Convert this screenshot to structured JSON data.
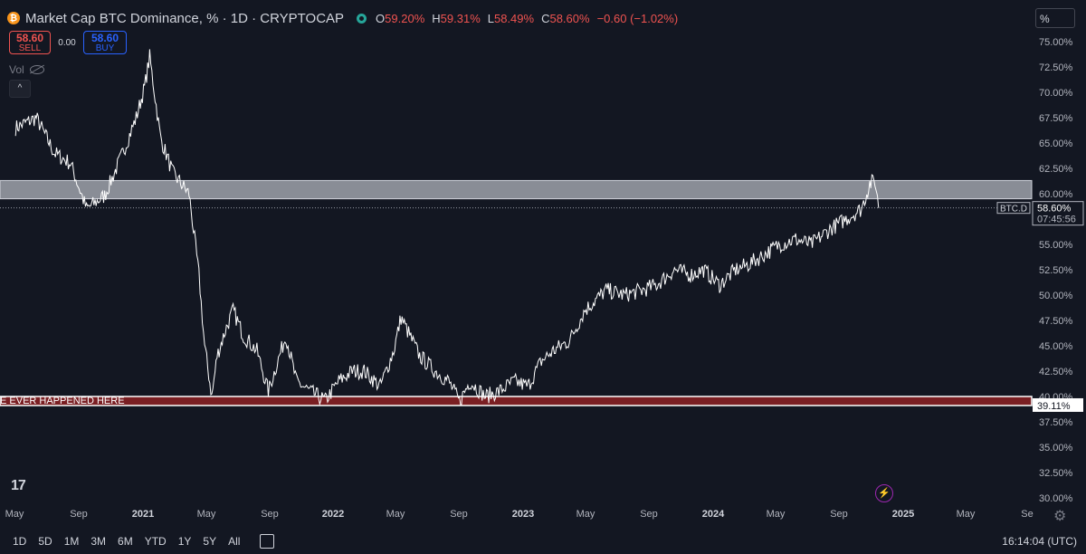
{
  "header": {
    "coin_glyph": "₿",
    "title": "Market Cap BTC Dominance, % · 1D · CRYPTOCAP",
    "ohlc": [
      {
        "key": "O",
        "value": "59.20%"
      },
      {
        "key": "H",
        "value": "59.31%"
      },
      {
        "key": "L",
        "value": "58.49%"
      },
      {
        "key": "C",
        "value": "58.60%"
      }
    ],
    "change": "−0.60 (−1.02%)",
    "change_color": "#ef5350"
  },
  "trade": {
    "sell_price": "58.60",
    "sell_label": "SELL",
    "spread": "0.00",
    "buy_price": "58.60",
    "buy_label": "BUY"
  },
  "volume_label": "Vol",
  "scale_mode": "%",
  "price_tag": {
    "symbol": "BTC.D",
    "price": "58.60%",
    "countdown": "07:45:56"
  },
  "support_tag": "39.11%",
  "annotation": "E EVER HAPPENED HERE",
  "logo": "17",
  "time_ranges": [
    "1D",
    "5D",
    "1M",
    "3M",
    "6M",
    "YTD",
    "1Y",
    "5Y",
    "All"
  ],
  "clock": "16:14:04 (UTC)",
  "colors": {
    "background": "#131722",
    "series": "#ffffff",
    "resistance_zone": "#b2b5be",
    "support_zone": "#7a1f23",
    "sell": "#ef5350",
    "buy": "#2962ff"
  },
  "icons": {
    "search": "none",
    "gear": "gear-icon",
    "bolt": "lightning-icon",
    "goto": "calendar-goto-icon",
    "eye": "eye-off-icon"
  },
  "chart_data": {
    "type": "line",
    "title": "Market Cap BTC Dominance, %",
    "series": [
      {
        "name": "BTC.D",
        "x": [
          "2020-05-01",
          "2020-06-10",
          "2020-07-15",
          "2020-08-15",
          "2020-09-15",
          "2020-10-20",
          "2020-11-20",
          "2020-12-20",
          "2021-01-05",
          "2021-01-15",
          "2021-02-05",
          "2021-03-01",
          "2021-04-01",
          "2021-04-20",
          "2021-05-01",
          "2021-05-15",
          "2021-05-25",
          "2021-06-10",
          "2021-06-25",
          "2021-07-15",
          "2021-08-10",
          "2021-09-01",
          "2021-09-10",
          "2021-10-05",
          "2021-10-25",
          "2021-11-20",
          "2021-12-20",
          "2022-01-15",
          "2022-02-10",
          "2022-03-05",
          "2022-04-05",
          "2022-05-01",
          "2022-05-15",
          "2022-06-20",
          "2022-07-20",
          "2022-08-15",
          "2022-09-05",
          "2022-09-25",
          "2022-10-25",
          "2022-11-20",
          "2022-12-20",
          "2023-01-15",
          "2023-02-10",
          "2023-03-05",
          "2023-04-05",
          "2023-05-05",
          "2023-06-15",
          "2023-07-20",
          "2023-08-25",
          "2023-09-20",
          "2023-10-25",
          "2023-11-25",
          "2023-12-20",
          "2024-01-20",
          "2024-02-20",
          "2024-03-15",
          "2024-04-15",
          "2024-05-15",
          "2024-06-15",
          "2024-07-15",
          "2024-08-20",
          "2024-09-20",
          "2024-10-20",
          "2024-11-05",
          "2024-11-15",
          "2024-11-22"
        ],
        "y": [
          66.5,
          67.5,
          64.0,
          63.0,
          58.5,
          59.8,
          63.5,
          67.5,
          70.5,
          73.5,
          65.5,
          62.0,
          60.0,
          52.0,
          45.0,
          40.0,
          44.0,
          46.5,
          48.5,
          46.0,
          44.5,
          40.5,
          42.0,
          46.0,
          41.5,
          40.5,
          39.6,
          41.5,
          42.5,
          42.5,
          41.0,
          44.5,
          47.8,
          44.0,
          42.5,
          41.5,
          39.5,
          41.5,
          40.0,
          40.5,
          41.5,
          41.0,
          43.5,
          44.5,
          45.5,
          48.5,
          50.5,
          50.0,
          50.5,
          51.0,
          52.5,
          52.0,
          52.5,
          51.0,
          52.5,
          53.0,
          54.0,
          55.0,
          55.5,
          55.0,
          56.5,
          57.5,
          58.5,
          61.0,
          61.3,
          58.6
        ]
      }
    ],
    "xlabel": "",
    "ylabel": "",
    "x_ticks": [
      "May",
      "Sep",
      "2021",
      "May",
      "Sep",
      "2022",
      "May",
      "Sep",
      "2023",
      "May",
      "Sep",
      "2024",
      "May",
      "Sep",
      "2025",
      "May",
      "Se"
    ],
    "y_ticks": [
      "75.00%",
      "72.50%",
      "70.00%",
      "67.50%",
      "65.00%",
      "62.50%",
      "60.00%",
      "57.50%",
      "55.00%",
      "52.50%",
      "50.00%",
      "47.50%",
      "45.00%",
      "42.50%",
      "40.00%",
      "37.50%",
      "35.00%",
      "32.50%",
      "30.00%"
    ],
    "ylim": [
      30,
      75
    ],
    "x_range": [
      "2020-04-01",
      "2025-10-01"
    ],
    "zones": [
      {
        "label": "resistance",
        "from": 59.5,
        "to": 61.3
      },
      {
        "label": "support",
        "from": 39.11,
        "to": 40.0
      }
    ],
    "last_price": 58.6,
    "grid": false
  }
}
